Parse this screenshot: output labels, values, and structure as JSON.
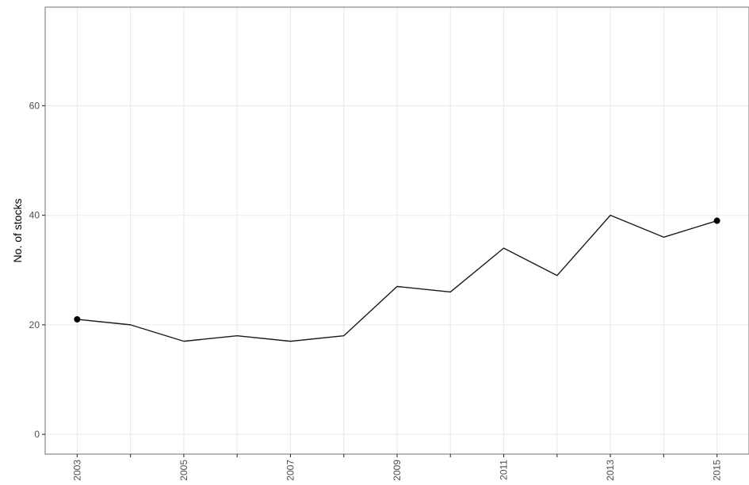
{
  "chart_data": {
    "type": "line",
    "title": "",
    "xlabel": "",
    "ylabel": "No. of stocks",
    "x": [
      2003,
      2004,
      2005,
      2006,
      2007,
      2008,
      2009,
      2010,
      2011,
      2012,
      2013,
      2014,
      2015
    ],
    "series": [
      {
        "values": [
          21,
          20,
          17,
          18,
          17,
          18,
          27,
          26,
          34,
          29,
          40,
          36,
          39
        ]
      }
    ],
    "highlighted_points": [
      {
        "x": 2003,
        "y": 21
      },
      {
        "x": 2015,
        "y": 39
      }
    ],
    "xlim": [
      2002.4,
      2015.6
    ],
    "ylim": [
      -3.6,
      78
    ],
    "x_ticks": [
      2003,
      2005,
      2007,
      2009,
      2011,
      2013,
      2015
    ],
    "x_minor_ticks": [
      2004,
      2006,
      2008,
      2010,
      2012,
      2014
    ],
    "y_ticks": [
      0,
      20,
      40,
      60
    ],
    "grid": true,
    "x_tick_rotation": "vertical",
    "theme": "black-and-white",
    "colors": {
      "line": "#1a1a1a",
      "point": "#000000",
      "grid": "#ebebeb",
      "panel_border": "#7f7f7f",
      "tick_label": "#4d4d4d"
    }
  }
}
